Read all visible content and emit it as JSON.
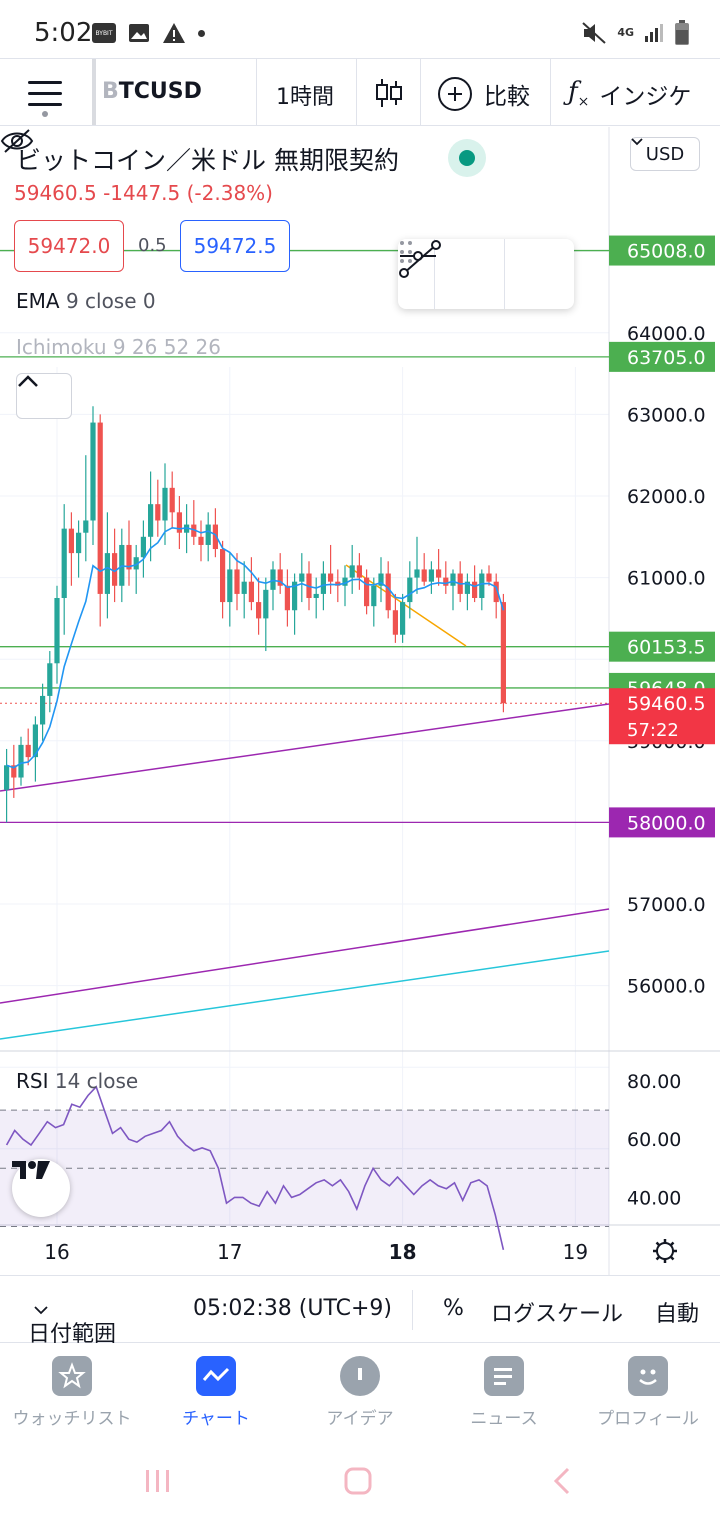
{
  "status_bar": {
    "time": "5:02",
    "network": "4G",
    "icons": [
      "bybit-app-icon",
      "gallery-icon",
      "warning-icon",
      "dot-icon",
      "mute-icon",
      "signal-icon",
      "battery-icon"
    ]
  },
  "toolbar": {
    "symbol_fade": "B",
    "symbol": "TCUSD",
    "interval": "1時間",
    "compare_label": "比較",
    "indicators_label": "インジケ"
  },
  "legend": {
    "title": "ビットコイン／米ドル 無期限契約",
    "price_line": "59460.5  -1447.5 (-2.38%)",
    "bid": "59472.0",
    "spread": "0.5",
    "ask": "59472.5",
    "ema_name": "EMA",
    "ema_params": "9 close 0",
    "ichimoku": "Ichimoku 9 26 52 26",
    "currency": "USD"
  },
  "price_scale": {
    "ticks": [
      "64000.0",
      "63000.0",
      "62000.0",
      "61000.0",
      "57000.0",
      "56000.0"
    ],
    "partial_top": "65000.0",
    "partial_bottom": "59000.0",
    "labels": [
      {
        "text": "65008.0",
        "color": "#4caf50"
      },
      {
        "text": "63705.0",
        "color": "#4caf50"
      },
      {
        "text": "60153.5",
        "color": "#4caf50"
      },
      {
        "text": "59648.0",
        "color": "#4caf50"
      },
      {
        "text": "59460.5",
        "color": "#f23645"
      },
      {
        "text": "58000.0",
        "color": "#9c27b0"
      }
    ],
    "countdown": "57:22"
  },
  "rsi": {
    "name": "RSI",
    "params": "14 close",
    "ticks": [
      "80.00",
      "60.00",
      "40.00"
    ]
  },
  "time_axis": {
    "labels": [
      "16",
      "17",
      "18",
      "19"
    ]
  },
  "range_bar": {
    "date_range": "日付範囲",
    "clock": "05:02:38 (UTC+9)",
    "percent": "%",
    "log": "ログスケール",
    "auto": "自動"
  },
  "bottom_nav": {
    "items": [
      {
        "label": "ウォッチリスト",
        "icon": "star-icon"
      },
      {
        "label": "チャート",
        "icon": "chart-icon"
      },
      {
        "label": "アイデア",
        "icon": "lightbulb-icon"
      },
      {
        "label": "ニュース",
        "icon": "news-icon"
      },
      {
        "label": "プロフィール",
        "icon": "smile-icon"
      }
    ],
    "active_index": 1
  },
  "colors": {
    "up": "#26a69a",
    "down": "#ef5350",
    "ema": "#2196f3",
    "green_line": "#4caf50",
    "purple_line": "#9c27b0",
    "teal_line": "#26c6da",
    "orange_trend": "#f7a600",
    "rsi_line": "#7e57c2",
    "accent": "#2962ff"
  }
}
